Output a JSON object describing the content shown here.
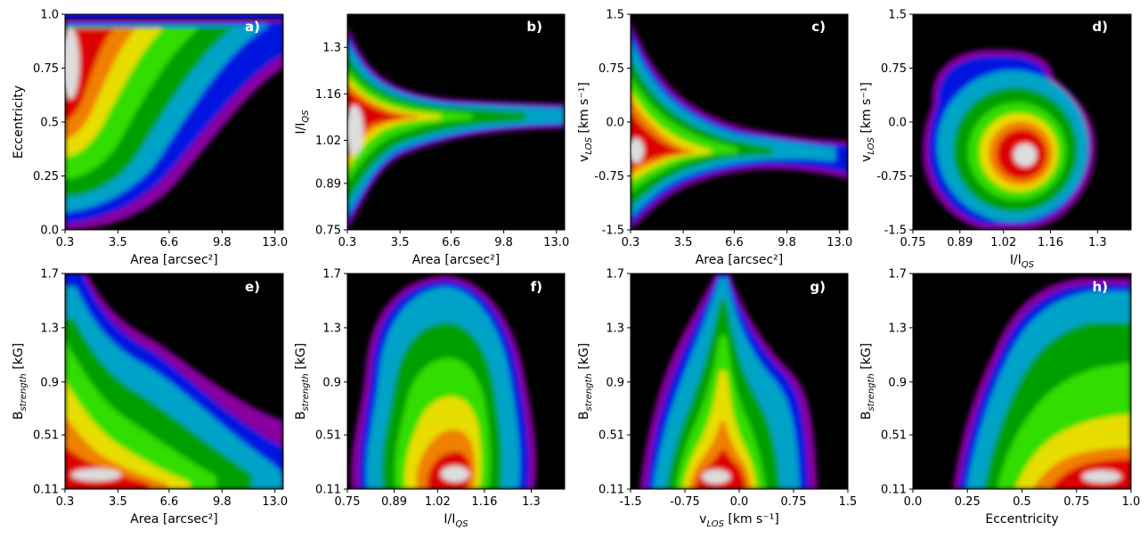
{
  "chart_data": [
    {
      "type": "heatmap",
      "panel_label": "a)",
      "xlabel": "Area [arcsec²]",
      "ylabel": "Eccentricity",
      "xlim": [
        0.3,
        13.5
      ],
      "ylim": [
        0.0,
        1.0
      ],
      "xticks": [
        "0.3",
        "3.5",
        "6.6",
        "9.8",
        "13.0"
      ],
      "yticks": [
        "0.0",
        "0.25",
        "0.5",
        "0.75",
        "1.0"
      ],
      "density_peak": {
        "x": 0.5,
        "y": 0.86
      },
      "colormap": "nipy_spectral"
    },
    {
      "type": "heatmap",
      "panel_label": "b)",
      "xlabel": "Area [arcsec²]",
      "ylabel": "I/I_QS",
      "xlim": [
        0.3,
        13.5
      ],
      "ylim": [
        0.75,
        1.4
      ],
      "xticks": [
        "0.3",
        "3.5",
        "6.6",
        "9.8",
        "13.0"
      ],
      "yticks": [
        "0.75",
        "0.89",
        "1.02",
        "1.16",
        "1.3"
      ],
      "density_peak": {
        "x": 0.5,
        "y": 1.03
      },
      "colormap": "nipy_spectral"
    },
    {
      "type": "heatmap",
      "panel_label": "c)",
      "xlabel": "Area [arcsec²]",
      "ylabel": "v_LOS [km s⁻¹]",
      "xlim": [
        0.3,
        13.5
      ],
      "ylim": [
        -1.5,
        1.5
      ],
      "xticks": [
        "0.3",
        "3.5",
        "6.6",
        "9.8",
        "13.0"
      ],
      "yticks": [
        "-1.5",
        "-0.75",
        "0.0",
        "0.75",
        "1.5"
      ],
      "density_peak": {
        "x": 0.5,
        "y": -0.4
      },
      "colormap": "nipy_spectral"
    },
    {
      "type": "heatmap",
      "panel_label": "d)",
      "xlabel": "I/I_QS",
      "ylabel": "v_LOS [km s⁻¹]",
      "xlim": [
        0.75,
        1.4
      ],
      "ylim": [
        -1.5,
        1.5
      ],
      "xticks": [
        "0.75",
        "0.89",
        "1.02",
        "1.16",
        "1.3"
      ],
      "yticks": [
        "-1.5",
        "-0.75",
        "0.0",
        "0.75",
        "1.5"
      ],
      "density_peak": {
        "x": 1.07,
        "y": -0.5
      },
      "colormap": "nipy_spectral"
    },
    {
      "type": "heatmap",
      "panel_label": "e)",
      "xlabel": "Area [arcsec²]",
      "ylabel": "B_strength [kG]",
      "xlim": [
        0.3,
        13.5
      ],
      "ylim": [
        0.11,
        1.7
      ],
      "xticks": [
        "0.3",
        "3.5",
        "6.6",
        "9.8",
        "13.0"
      ],
      "yticks": [
        "0.11",
        "0.51",
        "0.9",
        "1.3",
        "1.7"
      ],
      "density_peak": {
        "x": 0.6,
        "y": 0.2
      },
      "colormap": "nipy_spectral"
    },
    {
      "type": "heatmap",
      "panel_label": "f)",
      "xlabel": "I/I_QS",
      "ylabel": "B_strength [kG]",
      "xlim": [
        0.75,
        1.4
      ],
      "ylim": [
        0.11,
        1.7
      ],
      "xticks": [
        "0.75",
        "0.89",
        "1.02",
        "1.16",
        "1.3"
      ],
      "yticks": [
        "0.11",
        "0.51",
        "0.9",
        "1.3",
        "1.7"
      ],
      "density_peak": {
        "x": 1.07,
        "y": 0.2
      },
      "colormap": "nipy_spectral"
    },
    {
      "type": "heatmap",
      "panel_label": "g)",
      "xlabel": "v_LOS [km s⁻¹]",
      "ylabel": "B_strength [kG]",
      "xlim": [
        -1.5,
        1.5
      ],
      "ylim": [
        0.11,
        1.7
      ],
      "xticks": [
        "-1.5",
        "-0.75",
        "0.0",
        "0.75",
        "1.5"
      ],
      "yticks": [
        "0.11",
        "0.51",
        "0.9",
        "1.3",
        "1.7"
      ],
      "density_peak": {
        "x": -0.6,
        "y": 0.2
      },
      "colormap": "nipy_spectral"
    },
    {
      "type": "heatmap",
      "panel_label": "h)",
      "xlabel": "Eccentricity",
      "ylabel": "B_strength [kG]",
      "xlim": [
        0.0,
        1.0
      ],
      "ylim": [
        0.11,
        1.7
      ],
      "xticks": [
        "0.0",
        "0.25",
        "0.5",
        "0.75",
        "1.0"
      ],
      "yticks": [
        "0.11",
        "0.51",
        "0.9",
        "1.3",
        "1.7"
      ],
      "density_peak": {
        "x": 0.87,
        "y": 0.2
      },
      "colormap": "nipy_spectral"
    }
  ]
}
